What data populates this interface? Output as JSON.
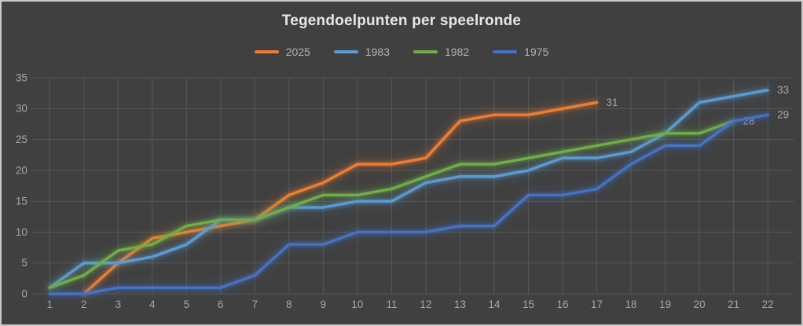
{
  "chart_data": {
    "type": "line",
    "title": "Tegendoelpunten per speelronde",
    "xlabel": "",
    "ylabel": "",
    "x_ticks": [
      1,
      2,
      3,
      4,
      5,
      6,
      7,
      8,
      9,
      10,
      11,
      12,
      13,
      14,
      15,
      16,
      17,
      18,
      19,
      20,
      21,
      22
    ],
    "y_ticks": [
      0,
      5,
      10,
      15,
      20,
      25,
      30,
      35
    ],
    "ylim": [
      0,
      35
    ],
    "grid": true,
    "legend_position": "top-center",
    "background_color": "#404040",
    "gridline_color": "#585858",
    "border_color": "#c9c9c9",
    "title_color": "#e7e7e7",
    "tick_color": "#a6a6a6",
    "legend_text_color": "#b3b3b3",
    "series": [
      {
        "name": "2025",
        "color": "#ED7D31",
        "end_label": "31",
        "values": [
          null,
          0,
          5,
          9,
          10,
          11,
          12,
          16,
          18,
          21,
          21,
          22,
          28,
          29,
          29,
          30,
          31,
          null,
          null,
          null,
          null,
          null
        ]
      },
      {
        "name": "1983",
        "color": "#5B9BD5",
        "end_label": "33",
        "values": [
          1,
          5,
          5,
          6,
          8,
          12,
          12,
          14,
          14,
          15,
          15,
          18,
          19,
          19,
          20,
          22,
          22,
          23,
          26,
          31,
          32,
          33
        ]
      },
      {
        "name": "1982",
        "color": "#70AD47",
        "end_label": "28",
        "values": [
          1,
          3,
          7,
          8,
          11,
          12,
          12,
          14,
          16,
          16,
          17,
          19,
          21,
          21,
          22,
          23,
          24,
          25,
          26,
          26,
          28,
          null
        ]
      },
      {
        "name": "1975",
        "color": "#4472C4",
        "end_label": "29",
        "values": [
          0,
          0,
          1,
          1,
          1,
          1,
          3,
          8,
          8,
          10,
          10,
          10,
          11,
          11,
          16,
          16,
          17,
          21,
          24,
          24,
          28,
          29
        ]
      }
    ]
  }
}
